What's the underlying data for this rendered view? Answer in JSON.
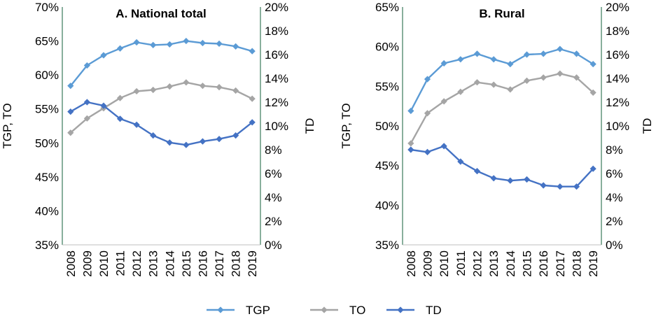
{
  "colors": {
    "TGP": "#5b9bd5",
    "TO": "#a5a5a5",
    "TD": "#4472c4",
    "axis": "#3a7a5a"
  },
  "legend": [
    {
      "key": "TGP",
      "label": "TGP"
    },
    {
      "key": "TO",
      "label": "TO"
    },
    {
      "key": "TD",
      "label": "TD"
    }
  ],
  "chart_data": [
    {
      "type": "line",
      "title": "A. National total",
      "ylabel": "TGP, TO",
      "y2label": "TD",
      "x": [
        "2008",
        "2009",
        "2010",
        "2011",
        "2012",
        "2013",
        "2014",
        "2015",
        "2016",
        "2017",
        "2018",
        "2019"
      ],
      "ylim": [
        35,
        70
      ],
      "yticks": [
        "35%",
        "40%",
        "45%",
        "50%",
        "55%",
        "60%",
        "65%",
        "70%"
      ],
      "ytick_values": [
        35,
        40,
        45,
        50,
        55,
        60,
        65,
        70
      ],
      "y2lim": [
        0,
        20
      ],
      "y2ticks": [
        "0%",
        "2%",
        "4%",
        "6%",
        "8%",
        "10%",
        "12%",
        "14%",
        "16%",
        "18%",
        "20%"
      ],
      "y2tick_values": [
        0,
        2,
        4,
        6,
        8,
        10,
        12,
        14,
        16,
        18,
        20
      ],
      "grid": false,
      "legend_position": "bottom",
      "series": [
        {
          "name": "TGP",
          "axis": "left",
          "values": [
            58.4,
            61.4,
            62.9,
            63.9,
            64.8,
            64.4,
            64.5,
            65.0,
            64.7,
            64.6,
            64.2,
            63.5
          ]
        },
        {
          "name": "TO",
          "axis": "left",
          "values": [
            51.5,
            53.6,
            55.1,
            56.6,
            57.6,
            57.8,
            58.3,
            58.9,
            58.4,
            58.2,
            57.7,
            56.5
          ]
        },
        {
          "name": "TD",
          "axis": "right",
          "values": [
            11.2,
            12.0,
            11.7,
            10.6,
            10.1,
            9.2,
            8.6,
            8.4,
            8.7,
            8.9,
            9.2,
            10.3
          ]
        }
      ]
    },
    {
      "type": "line",
      "title": "B. Rural",
      "ylabel": "TGP, TO",
      "y2label": "TD",
      "x": [
        "2008",
        "2009",
        "2010",
        "2011",
        "2012",
        "2013",
        "2014",
        "2015",
        "2016",
        "2017",
        "2018",
        "2019"
      ],
      "ylim": [
        35,
        65
      ],
      "yticks": [
        "35%",
        "40%",
        "45%",
        "50%",
        "55%",
        "60%",
        "65%"
      ],
      "ytick_values": [
        35,
        40,
        45,
        50,
        55,
        60,
        65
      ],
      "y2lim": [
        0,
        20
      ],
      "y2ticks": [
        "0%",
        "2%",
        "4%",
        "6%",
        "8%",
        "10%",
        "12%",
        "14%",
        "16%",
        "18%",
        "20%"
      ],
      "y2tick_values": [
        0,
        2,
        4,
        6,
        8,
        10,
        12,
        14,
        16,
        18,
        20
      ],
      "grid": false,
      "legend_position": "bottom",
      "series": [
        {
          "name": "TGP",
          "axis": "left",
          "values": [
            51.9,
            55.9,
            57.9,
            58.4,
            59.1,
            58.4,
            57.8,
            59.0,
            59.1,
            59.7,
            59.1,
            57.8
          ]
        },
        {
          "name": "TO",
          "axis": "left",
          "values": [
            47.8,
            51.6,
            53.1,
            54.3,
            55.5,
            55.2,
            54.6,
            55.7,
            56.1,
            56.6,
            56.1,
            54.2
          ]
        },
        {
          "name": "TD",
          "axis": "right",
          "values": [
            8.0,
            7.8,
            8.3,
            7.0,
            6.2,
            5.6,
            5.4,
            5.5,
            5.0,
            4.9,
            4.9,
            6.4
          ]
        }
      ]
    }
  ]
}
